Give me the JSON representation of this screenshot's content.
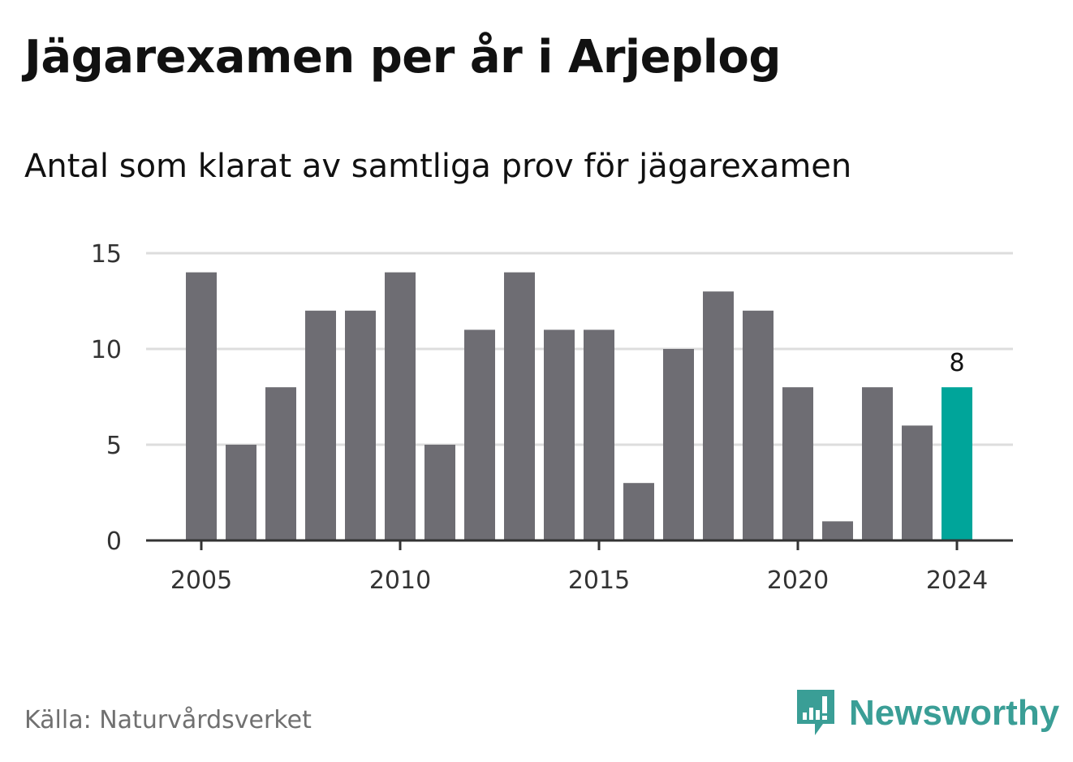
{
  "header": {
    "title": "Jägarexamen per år i Arjeplog",
    "subtitle": "Antal som klarat av samtliga prov för jägarexamen"
  },
  "footer": {
    "source": "Källa: Naturvårdsverket",
    "brand": "Newsworthy"
  },
  "colors": {
    "bar": "#6e6d73",
    "highlight": "#00a59a",
    "grid": "#dddddd",
    "axis": "#333333",
    "brand": "#3a9e96"
  },
  "chart_data": {
    "type": "bar",
    "categories": [
      "2005",
      "2006",
      "2007",
      "2008",
      "2009",
      "2010",
      "2011",
      "2012",
      "2013",
      "2014",
      "2015",
      "2016",
      "2017",
      "2018",
      "2019",
      "2020",
      "2021",
      "2022",
      "2023",
      "2024"
    ],
    "values": [
      14,
      5,
      8,
      12,
      12,
      14,
      5,
      11,
      14,
      11,
      11,
      3,
      10,
      13,
      12,
      8,
      1,
      8,
      6,
      8
    ],
    "highlight_index": 19,
    "x_tick_labels": [
      "2005",
      "2010",
      "2015",
      "2020",
      "2024"
    ],
    "y_ticks": [
      0,
      5,
      10,
      15
    ],
    "ylim": [
      0,
      15
    ],
    "grid": true,
    "data_labels": [
      {
        "category": "2024",
        "text": "8"
      }
    ]
  }
}
